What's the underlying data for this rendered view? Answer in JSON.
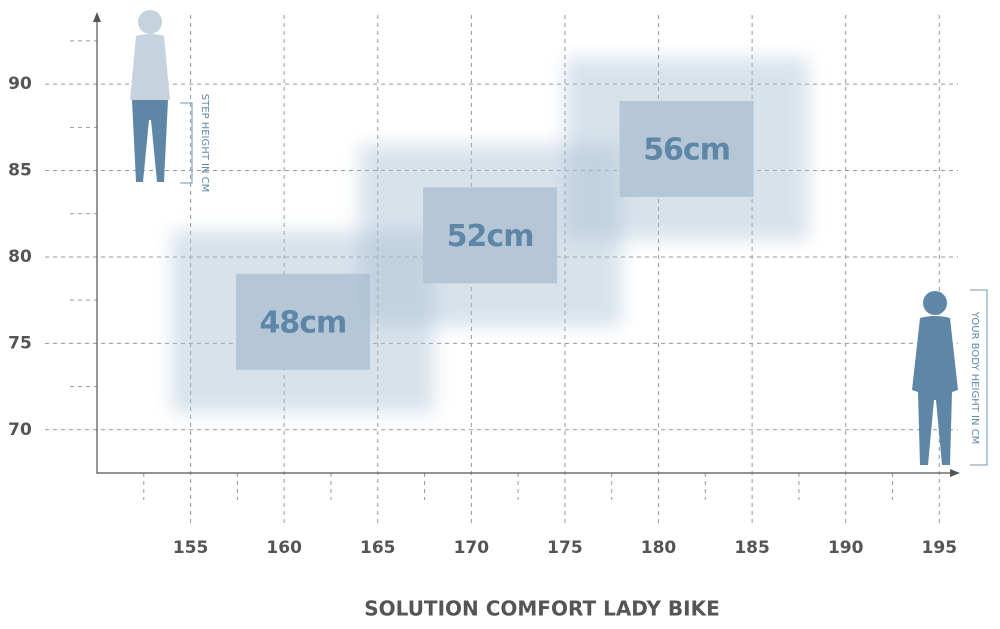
{
  "chart_data": {
    "type": "range-box",
    "title": "SOLUTION COMFORT LADY BIKE",
    "y_label": "STEP HEIGHT IN CM",
    "x_label": "YOUR BODY HEIGHT IN CM",
    "xlim": [
      150,
      196
    ],
    "ylim": [
      67.5,
      94
    ],
    "xticks": [
      155,
      160,
      165,
      170,
      175,
      180,
      185,
      190,
      195
    ],
    "yticks": [
      70,
      75,
      80,
      85,
      90
    ],
    "xminorticks": [
      152.5,
      157.5,
      162.5,
      167.5,
      172.5,
      177.5,
      182.5,
      187.5,
      192.5
    ],
    "yminorticks": [
      72.5,
      77.5,
      82.5,
      87.5,
      92.5
    ],
    "grid": true,
    "series": [
      {
        "name": "48cm",
        "x_range": [
          154,
          168
        ],
        "y_range": [
          71,
          81.5
        ]
      },
      {
        "name": "52cm",
        "x_range": [
          164,
          178
        ],
        "y_range": [
          76,
          86.5
        ]
      },
      {
        "name": "56cm",
        "x_range": [
          175,
          188
        ],
        "y_range": [
          81,
          91.5
        ]
      }
    ]
  }
}
